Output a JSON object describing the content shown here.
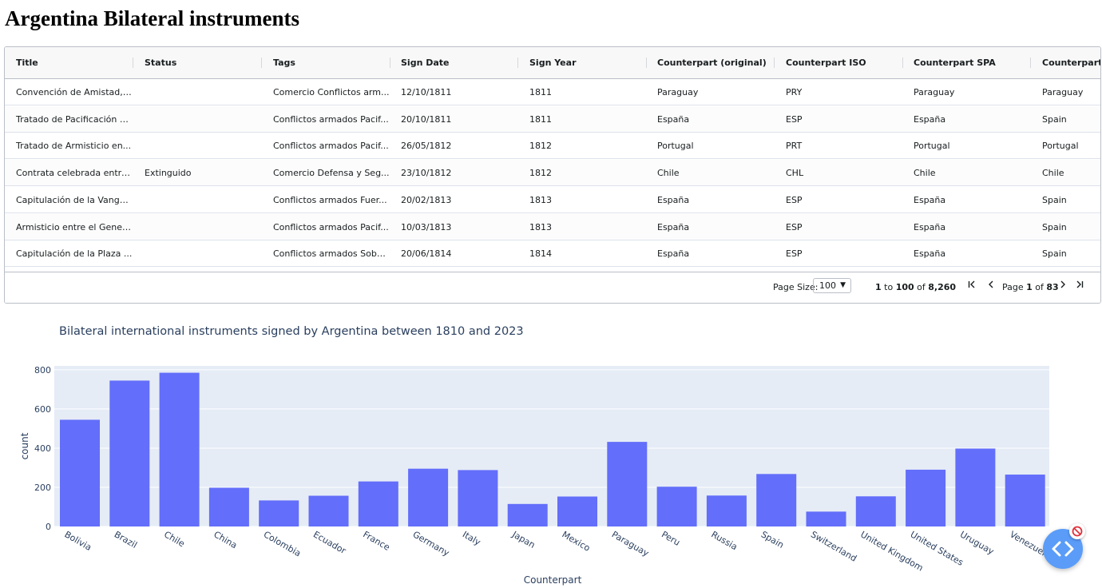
{
  "page": {
    "title": "Argentina Bilateral instruments"
  },
  "grid": {
    "columns": [
      "Title",
      "Status",
      "Tags",
      "Sign Date",
      "Sign Year",
      "Counterpart (original)",
      "Counterpart ISO",
      "Counterpart SPA",
      "Counterpart EN"
    ],
    "rows": [
      [
        "Convención de Amistad, ...",
        "",
        "Comercio Conflictos arm...",
        "12/10/1811",
        "1811",
        "Paraguay",
        "PRY",
        "Paraguay",
        "Paraguay"
      ],
      [
        "Tratado de Pacificación e...",
        "",
        "Conflictos armados Pacif...",
        "20/10/1811",
        "1811",
        "España",
        "ESP",
        "España",
        "Spain"
      ],
      [
        "Tratado de Armisticio en...",
        "",
        "Conflictos armados Pacif...",
        "26/05/1812",
        "1812",
        "Portugal",
        "PRT",
        "Portugal",
        "Portugal"
      ],
      [
        "Contrata celebrada entre...",
        "Extinguido",
        "Comercio Defensa y Seg...",
        "23/10/1812",
        "1812",
        "Chile",
        "CHL",
        "Chile",
        "Chile"
      ],
      [
        "Capitulación de la Vangu...",
        "",
        "Conflictos armados Fuer...",
        "20/02/1813",
        "1813",
        "España",
        "ESP",
        "España",
        "Spain"
      ],
      [
        "Armisticio entre el Gener...",
        "",
        "Conflictos armados Pacif...",
        "10/03/1813",
        "1813",
        "España",
        "ESP",
        "España",
        "Spain"
      ],
      [
        "Capitulación de la Plaza ...",
        "",
        "Conflictos armados Sobe...",
        "20/06/1814",
        "1814",
        "España",
        "ESP",
        "España",
        "Spain"
      ]
    ],
    "pagination": {
      "page_size_label": "Page Size:",
      "page_size_value": "100",
      "range_from": "1",
      "range_to_word": "to",
      "range_to": "100",
      "of_word": "of",
      "range_total": "8,260",
      "page_word": "Page",
      "page_current": "1",
      "page_of_word": "of",
      "page_total": "83"
    }
  },
  "chart_data": {
    "type": "bar",
    "title": "Bilateral international instruments signed by Argentina between 1810 and 2023",
    "xlabel": "Counterpart",
    "ylabel": "count",
    "categories": [
      "Bolivia",
      "Brazil",
      "Chile",
      "China",
      "Colombia",
      "Ecuador",
      "France",
      "Germany",
      "Italy",
      "Japan",
      "Mexico",
      "Paraguay",
      "Peru",
      "Russia",
      "Spain",
      "Switzerland",
      "United Kingdom",
      "United States",
      "Uruguay",
      "Venezuela"
    ],
    "values": [
      545,
      745,
      785,
      198,
      133,
      157,
      230,
      295,
      288,
      115,
      153,
      432,
      203,
      158,
      268,
      76,
      154,
      290,
      398,
      265
    ],
    "yticks": [
      0,
      200,
      400,
      600,
      800
    ],
    "ylim": [
      0,
      820
    ],
    "bar_color": "#636efa",
    "plot_bg": "#e5ecf6",
    "grid": true
  },
  "colors": {
    "fab": "#5a9cf8"
  },
  "icons": {
    "fab": "code-icon",
    "badge": "blocked-icon"
  }
}
